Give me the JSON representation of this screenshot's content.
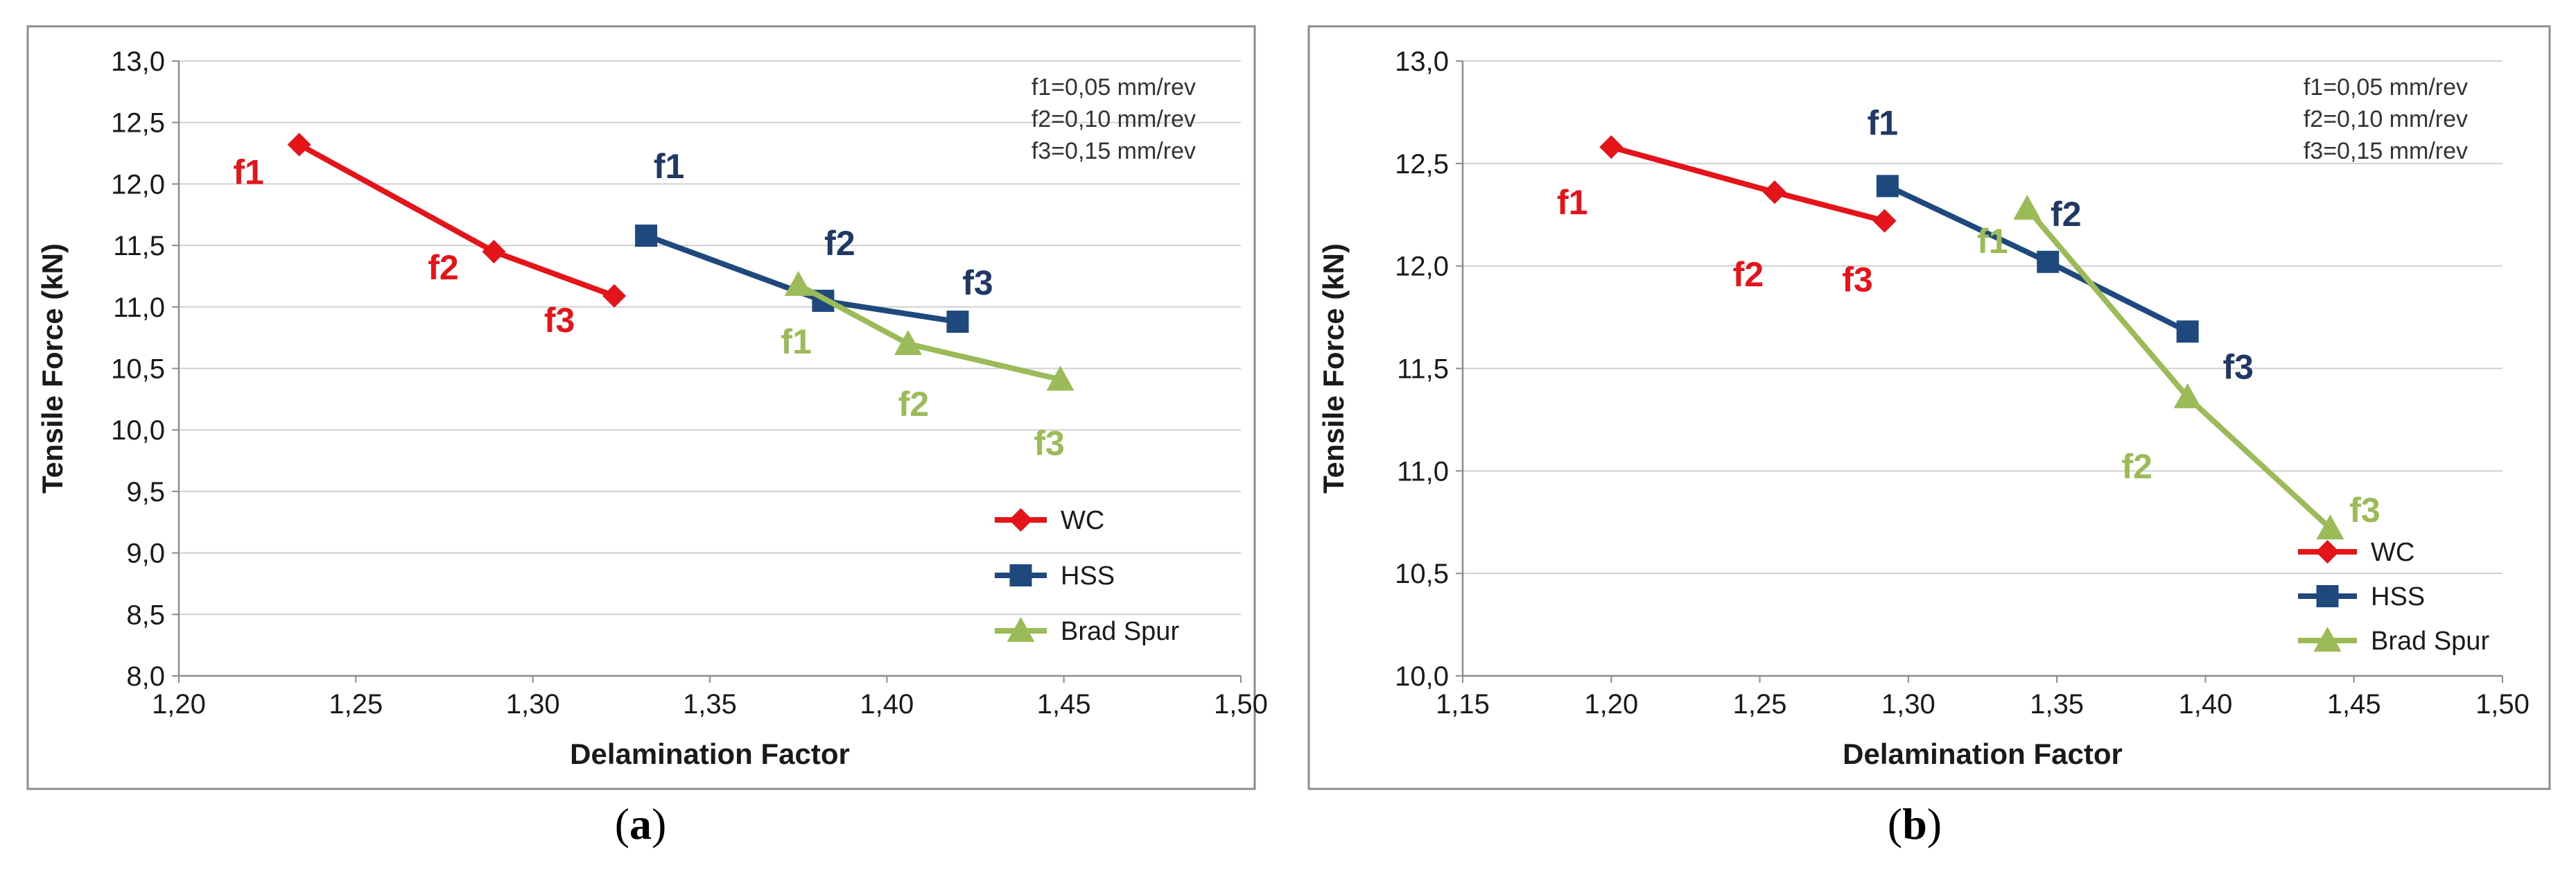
{
  "chart_data": [
    {
      "id": "a",
      "caption_letter": "a",
      "type": "line",
      "xlabel": "Delamination Factor",
      "ylabel": "Tensile Force (kN)",
      "xlim": [
        1.2,
        1.5
      ],
      "ylim": [
        8.0,
        13.0
      ],
      "xticks": [
        "1,20",
        "1,25",
        "1,30",
        "1,35",
        "1,40",
        "1,45",
        "1,50"
      ],
      "yticks": [
        "8,0",
        "8,5",
        "9,0",
        "9,5",
        "10,0",
        "10,5",
        "11,0",
        "11,5",
        "12,0",
        "12,5",
        "13,0"
      ],
      "grid": true,
      "legend_position": "bottom-right",
      "annotation": [
        "f1=0,05 mm/rev",
        "f2=0,10 mm/rev",
        "f3=0,15 mm/rev"
      ],
      "series": [
        {
          "name": "WC",
          "color": "#e3151b",
          "marker": "diamond",
          "x": [
            1.234,
            1.289,
            1.323
          ],
          "y": [
            12.32,
            11.45,
            11.09
          ],
          "labels": [
            "f1",
            "f2",
            "f3"
          ],
          "label_color": "#e3151b"
        },
        {
          "name": "HSS",
          "color": "#1f497d",
          "marker": "square",
          "x": [
            1.332,
            1.382,
            1.42
          ],
          "y": [
            11.58,
            11.05,
            10.88
          ],
          "labels": [
            "f1",
            "f2",
            "f3"
          ],
          "label_color": "#1f3864"
        },
        {
          "name": "Brad Spur",
          "color": "#9bbb59",
          "marker": "triangle",
          "x": [
            1.375,
            1.406,
            1.449
          ],
          "y": [
            11.18,
            10.7,
            10.41
          ],
          "labels": [
            "f1",
            "f2",
            "f3"
          ],
          "label_color": "#9bbb59"
        }
      ]
    },
    {
      "id": "b",
      "caption_letter": "b",
      "type": "line",
      "xlabel": "Delamination Factor",
      "ylabel": "Tensile Force (kN)",
      "xlim": [
        1.15,
        1.5
      ],
      "ylim": [
        10.0,
        13.0
      ],
      "xticks": [
        "1,15",
        "1,20",
        "1,25",
        "1,30",
        "1,35",
        "1,40",
        "1,45",
        "1,50"
      ],
      "yticks": [
        "10,0",
        "10,5",
        "11,0",
        "11,5",
        "12,0",
        "12,5",
        "13,0"
      ],
      "grid": true,
      "legend_position": "bottom-right",
      "annotation": [
        "f1=0,05 mm/rev",
        "f2=0,10 mm/rev",
        "f3=0,15 mm/rev"
      ],
      "series": [
        {
          "name": "WC",
          "color": "#e3151b",
          "marker": "diamond",
          "x": [
            1.2,
            1.255,
            1.292
          ],
          "y": [
            12.58,
            12.36,
            12.22
          ],
          "labels": [
            "f1",
            "f2",
            "f3"
          ],
          "label_color": "#e3151b"
        },
        {
          "name": "HSS",
          "color": "#1f497d",
          "marker": "square",
          "x": [
            1.293,
            1.347,
            1.394
          ],
          "y": [
            12.39,
            12.02,
            11.68
          ],
          "labels": [
            "f1",
            "f2",
            "f3"
          ],
          "label_color": "#1f3864"
        },
        {
          "name": "Brad Spur",
          "color": "#9bbb59",
          "marker": "triangle",
          "x": [
            1.34,
            1.394,
            1.442
          ],
          "y": [
            12.28,
            11.36,
            10.72
          ],
          "labels": [
            "f1",
            "f2",
            "f3"
          ],
          "label_color": "#9bbb59"
        }
      ]
    }
  ]
}
